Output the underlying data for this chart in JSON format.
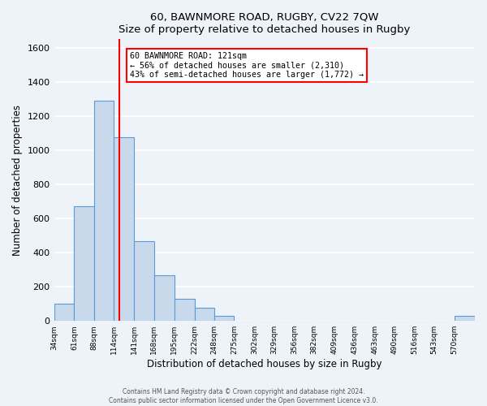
{
  "title": "60, BAWNMORE ROAD, RUGBY, CV22 7QW",
  "subtitle": "Size of property relative to detached houses in Rugby",
  "xlabel": "Distribution of detached houses by size in Rugby",
  "ylabel": "Number of detached properties",
  "bin_labels": [
    "34sqm",
    "61sqm",
    "88sqm",
    "114sqm",
    "141sqm",
    "168sqm",
    "195sqm",
    "222sqm",
    "248sqm",
    "275sqm",
    "302sqm",
    "329sqm",
    "356sqm",
    "382sqm",
    "409sqm",
    "436sqm",
    "463sqm",
    "490sqm",
    "516sqm",
    "543sqm",
    "570sqm"
  ],
  "bar_heights": [
    100,
    670,
    1290,
    1075,
    465,
    265,
    130,
    75,
    30,
    0,
    0,
    0,
    0,
    0,
    0,
    0,
    0,
    0,
    0,
    0,
    30
  ],
  "bin_edges": [
    34,
    61,
    88,
    114,
    141,
    168,
    195,
    222,
    248,
    275,
    302,
    329,
    356,
    382,
    409,
    436,
    463,
    490,
    516,
    543,
    570
  ],
  "bar_color": "#c9d9ec",
  "bar_edge_color": "#5b9bd5",
  "property_value": 121,
  "vline_color": "red",
  "annotation_box_color": "#ffffff",
  "annotation_box_edge": "red",
  "annotation_text_line1": "60 BAWNMORE ROAD: 121sqm",
  "annotation_text_line2": "← 56% of detached houses are smaller (2,310)",
  "annotation_text_line3": "43% of semi-detached houses are larger (1,772) →",
  "ylim": [
    0,
    1650
  ],
  "yticks": [
    0,
    200,
    400,
    600,
    800,
    1000,
    1200,
    1400,
    1600
  ],
  "footer_line1": "Contains HM Land Registry data © Crown copyright and database right 2024.",
  "footer_line2": "Contains public sector information licensed under the Open Government Licence v3.0.",
  "background_color": "#eef2f9",
  "grid_color": "#ffffff"
}
